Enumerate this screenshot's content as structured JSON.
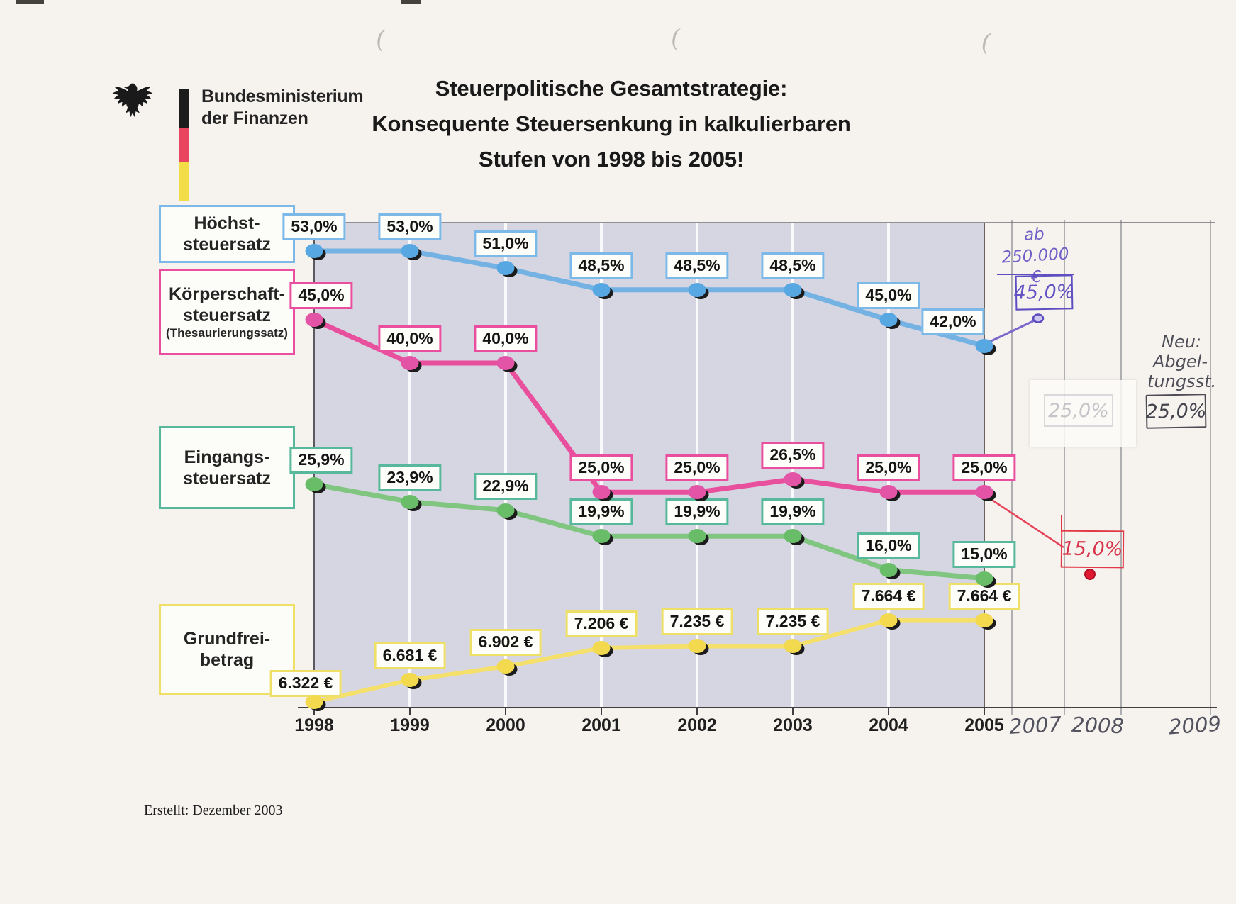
{
  "header": {
    "ministry_line1": "Bundesministerium",
    "ministry_line2": "der Finanzen",
    "title_line1": "Steuerpolitische Gesamtstrategie:",
    "title_line2": "Konsequente Steuersenkung in kalkulierbaren",
    "title_line3": "Stufen von 1998 bis 2005!",
    "flag_colors": [
      "#1c1c1c",
      "#e8435f",
      "#f2dc48"
    ]
  },
  "legend": [
    {
      "id": "hoechststeuersatz",
      "lines": [
        "Höchst-",
        "steuersatz"
      ],
      "sub": "",
      "color": "#7db9e8"
    },
    {
      "id": "koerperschaftsteuersatz",
      "lines": [
        "Körperschaft-",
        "steuersatz"
      ],
      "sub": "(Thesaurierungssatz)",
      "color": "#ea4f9f"
    },
    {
      "id": "eingangssteuersatz",
      "lines": [
        "Eingangs-",
        "steuersatz"
      ],
      "sub": "",
      "color": "#58b89b"
    },
    {
      "id": "grundfreibetrag",
      "lines": [
        "Grundfrei-",
        "betrag"
      ],
      "sub": "",
      "color": "#eee066"
    }
  ],
  "chart_data": {
    "type": "line",
    "categories": [
      "1998",
      "1999",
      "2000",
      "2001",
      "2002",
      "2003",
      "2004",
      "2005"
    ],
    "handwritten_years": [
      "2007",
      "2008",
      "2009"
    ],
    "grid": "vertical-white-stripes-on-grey",
    "legend_position": "left",
    "percent_axis_range": [
      0,
      56
    ],
    "series": [
      {
        "id": "hoechststeuersatz",
        "name": "Höchststeuersatz",
        "unit": "percent",
        "color_line": "#73b2e2",
        "color_marker": "#57a7e2",
        "color_box": "#7db9e8",
        "values": [
          53.0,
          53.0,
          51.0,
          48.5,
          48.5,
          48.5,
          45.0,
          42.0
        ],
        "labels": [
          "53,0%",
          "53,0%",
          "51,0%",
          "48,5%",
          "48,5%",
          "48,5%",
          "45,0%",
          "42,0%"
        ]
      },
      {
        "id": "koerperschaftsteuersatz",
        "name": "Körperschaftsteuersatz (Thesaurierungssatz)",
        "unit": "percent",
        "color_line": "#e8509e",
        "color_marker": "#e354a6",
        "color_box": "#ea4f9f",
        "values": [
          45.0,
          40.0,
          40.0,
          25.0,
          25.0,
          26.5,
          25.0,
          25.0
        ],
        "labels": [
          "45,0%",
          "40,0%",
          "40,0%",
          "25,0%",
          "25,0%",
          "26,5%",
          "25,0%",
          "25,0%"
        ]
      },
      {
        "id": "eingangssteuersatz",
        "name": "Eingangssteuersatz",
        "unit": "percent",
        "color_line": "#80c580",
        "color_marker": "#69bd69",
        "color_box": "#58b89b",
        "values": [
          25.9,
          23.9,
          22.9,
          19.9,
          19.9,
          19.9,
          16.0,
          15.0
        ],
        "labels": [
          "25,9%",
          "23,9%",
          "22,9%",
          "19,9%",
          "19,9%",
          "19,9%",
          "16,0%",
          "15,0%"
        ]
      },
      {
        "id": "grundfreibetrag",
        "name": "Grundfreibetrag",
        "unit": "eur",
        "color_line": "#f4e06a",
        "color_marker": "#f2d94e",
        "color_box": "#eee066",
        "values": [
          6322,
          6681,
          6902,
          7206,
          7235,
          7235,
          7664,
          7664
        ],
        "labels": [
          "6.322 €",
          "6.681 €",
          "6.902 €",
          "7.206 €",
          "7.235 €",
          "7.235 €",
          "7.664 €",
          "7.664 €"
        ]
      }
    ],
    "annotations": {
      "purple": {
        "note_line1": "ab",
        "note_line2": "250.000 €",
        "box_label": "45,0%",
        "applies_to": "Höchststeuersatz",
        "at_year": "2007",
        "value": 45.0,
        "color": "#6f5fc6"
      },
      "red": {
        "box_label": "15,0%",
        "applies_to": "Körperschaftsteuersatz",
        "at_year": "2008",
        "value": 15.0,
        "color": "#e23946"
      },
      "pencil": {
        "note_line1": "Neu:",
        "note_line2": "Abgel-",
        "note_line3": "tungsst.",
        "box_label": "25,0%",
        "at_year": "2009"
      },
      "ghost": {
        "box_label": "25,0%",
        "note": "whited-out pencil box",
        "at_year": "2008"
      }
    }
  },
  "footer": {
    "created": "Erstellt: Dezember 2003"
  }
}
